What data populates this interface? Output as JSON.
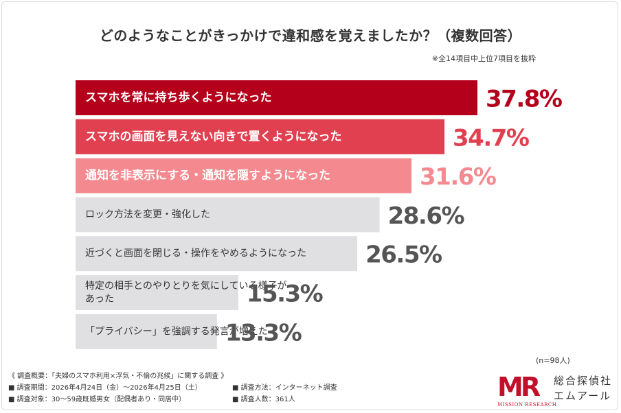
{
  "title": "どのようなことがきっかけで違和感を覚えましたか？（複数回答）",
  "note": "※全14項目中上位7項目を抜粋",
  "chart_data": {
    "type": "bar",
    "orientation": "horizontal",
    "unit": "%",
    "categories": [
      "スマホを常に持ち歩くようになった",
      "スマホの画面を見えない向きで置くようになった",
      "通知を非表示にする・通知を隠すようになった",
      "ロック方法を変更・強化した",
      "近づくと画面を閉じる・操作をやめるようになった",
      "特定の相手とのやりとりを気にしている様子があった",
      "「プライバシー」を強調する発言が増えた"
    ],
    "label_lines": [
      [
        "スマホを常に持ち歩くようになった"
      ],
      [
        "スマホの画面を見えない向きで置くようになった"
      ],
      [
        "通知を非表示にする・通知を隠すようになった"
      ],
      [
        "ロック方法を変更・強化した"
      ],
      [
        "近づくと画面を閉じる・操作をやめるようになった"
      ],
      [
        "特定の相手とのやりとりを気にしている様子が",
        "あった"
      ],
      [
        "「プライバシー」を強調する発言が増えた"
      ]
    ],
    "values": [
      37.8,
      34.7,
      31.6,
      28.6,
      26.5,
      15.3,
      13.3
    ],
    "value_labels": [
      "37.8%",
      "34.7%",
      "31.6%",
      "28.6%",
      "26.5%",
      "15.3%",
      "13.3%"
    ],
    "bar_colors": [
      "#b5001b",
      "#e0404f",
      "#f48a90",
      "#e0e0e2",
      "#e0e0e2",
      "#e0e0e2",
      "#e0e0e2"
    ],
    "label_colors": [
      "#ffffff",
      "#ffffff",
      "#ffffff",
      "#333333",
      "#333333",
      "#333333",
      "#333333"
    ],
    "value_colors": [
      "#b5001b",
      "#e0404f",
      "#f48a90",
      "#555555",
      "#555555",
      "#555555",
      "#555555"
    ],
    "xlim": [
      0,
      37.8
    ],
    "grid": false,
    "legend": "none"
  },
  "sample_size": "(n=98人)",
  "footer": {
    "overview": "《 調査概要：「夫婦のスマホ利用×浮気・不倫の兆候」に関する調査 》",
    "period": "■ 調査期間：2026年4月24日（金）〜2026年4月25日（土）",
    "method": "■ 調査方法：インターネット調査",
    "target": "■ 調査対象：30〜59歳既婚男女（配偶者あり・同居中）",
    "count": "■ 調査人数：361人"
  },
  "logo": {
    "mark": "MR",
    "sub": "MISSION RESEARCH",
    "name_line1": "総合探偵社",
    "name_line2": "エムアール",
    "color": "#c0102a"
  }
}
